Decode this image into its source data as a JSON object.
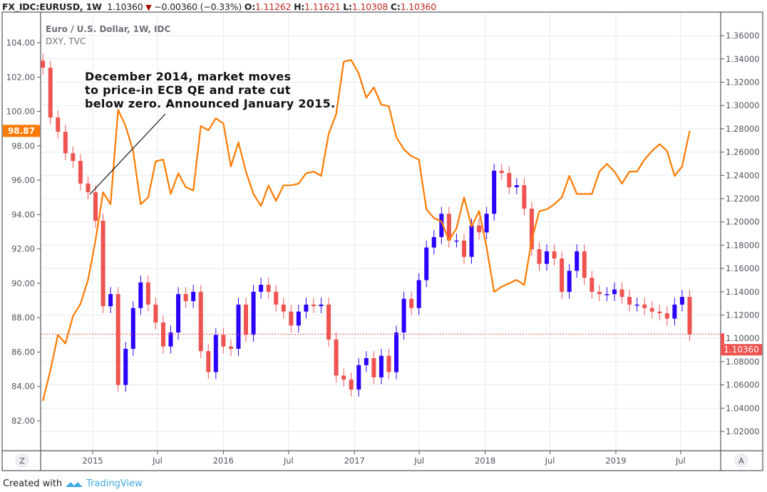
{
  "header": {
    "symbol": "FX_IDC:EURUSD, 1W",
    "last": "1.10360",
    "change": "−0.00360 (−0.33%)",
    "o_label": "O:",
    "o": "1.11262",
    "h_label": "H:",
    "h": "1.11621",
    "l_label": "L:",
    "l": "1.10308",
    "c_label": "C:",
    "c": "1.10360",
    "direction_icon": "triangle-down-icon"
  },
  "legend": {
    "main": "Euro / U.S. Dollar, 1W, IDC",
    "compare": "DXY, TVC"
  },
  "annotation": "December 2014, market moves to price-in ECB QE and rate cut below zero. Announced January 2015.",
  "annotation_lines": [
    "December 2014, market moves",
    "to price-in ECB QE and rate cut",
    "below zero. Announced January 2015."
  ],
  "left_price_label": "98.87",
  "right_price_label": "1.10360",
  "corner_left": "Z",
  "corner_right": "A",
  "footer": {
    "prefix": "Created with",
    "brand": "TradingView"
  },
  "colors": {
    "dxy": "#ff7a00",
    "up": "#2a00ff",
    "down": "#ef5350",
    "grid": "#e1ecf2",
    "last_price": "#ef5350"
  },
  "chart_data": {
    "type": "candlestick+line",
    "title": "FX_IDC:EURUSD, 1W",
    "grid": true,
    "x_ticks": [
      {
        "label": "2015",
        "date": "2015-01-01"
      },
      {
        "label": "Jul",
        "date": "2015-07-01"
      },
      {
        "label": "2016",
        "date": "2016-01-01"
      },
      {
        "label": "Jul",
        "date": "2016-07-01"
      },
      {
        "label": "2017",
        "date": "2017-01-01"
      },
      {
        "label": "Jul",
        "date": "2017-07-01"
      },
      {
        "label": "2018",
        "date": "2018-01-01"
      },
      {
        "label": "Jul",
        "date": "2018-07-01"
      },
      {
        "label": "2019",
        "date": "2019-01-01"
      },
      {
        "label": "Jul",
        "date": "2019-07-01"
      }
    ],
    "left_axis": {
      "series": "DXY",
      "range": [
        81,
        105
      ],
      "ticks": [
        "82.00",
        "84.00",
        "86.00",
        "88.00",
        "90.00",
        "92.00",
        "94.00",
        "96.00",
        "98.00",
        "100.00",
        "102.00",
        "104.00"
      ]
    },
    "right_axis": {
      "series": "EURUSD",
      "range": [
        1.01,
        1.37
      ],
      "ticks": [
        "1.02000",
        "1.04000",
        "1.06000",
        "1.08000",
        "1.10000",
        "1.12000",
        "1.14000",
        "1.16000",
        "1.18000",
        "1.20000",
        "1.22000",
        "1.24000",
        "1.26000",
        "1.28000",
        "1.30000",
        "1.32000",
        "1.34000",
        "1.36000"
      ]
    },
    "dates": [
      "2014-08-15",
      "2014-09-05",
      "2014-09-26",
      "2014-10-17",
      "2014-11-07",
      "2014-11-28",
      "2014-12-19",
      "2015-01-09",
      "2015-01-30",
      "2015-02-20",
      "2015-03-13",
      "2015-04-03",
      "2015-04-24",
      "2015-05-15",
      "2015-06-05",
      "2015-06-26",
      "2015-07-17",
      "2015-08-07",
      "2015-08-28",
      "2015-09-18",
      "2015-10-09",
      "2015-10-30",
      "2015-11-20",
      "2015-12-11",
      "2016-01-01",
      "2016-01-22",
      "2016-02-12",
      "2016-03-04",
      "2016-03-25",
      "2016-04-15",
      "2016-05-06",
      "2016-05-27",
      "2016-06-17",
      "2016-07-08",
      "2016-07-29",
      "2016-08-19",
      "2016-09-09",
      "2016-09-30",
      "2016-10-21",
      "2016-11-11",
      "2016-12-02",
      "2016-12-23",
      "2017-01-13",
      "2017-02-03",
      "2017-02-24",
      "2017-03-17",
      "2017-04-07",
      "2017-04-28",
      "2017-05-19",
      "2017-06-09",
      "2017-06-30",
      "2017-07-21",
      "2017-08-11",
      "2017-09-01",
      "2017-09-22",
      "2017-10-13",
      "2017-11-03",
      "2017-11-24",
      "2017-12-15",
      "2018-01-05",
      "2018-01-26",
      "2018-02-16",
      "2018-03-09",
      "2018-03-30",
      "2018-04-20",
      "2018-05-11",
      "2018-06-01",
      "2018-06-22",
      "2018-07-13",
      "2018-08-03",
      "2018-08-24",
      "2018-09-14",
      "2018-10-05",
      "2018-10-26",
      "2018-11-16",
      "2018-12-07",
      "2018-12-28",
      "2019-01-18",
      "2019-02-08",
      "2019-03-01",
      "2019-03-22",
      "2019-04-12",
      "2019-05-03",
      "2019-05-24",
      "2019-06-14",
      "2019-07-05",
      "2019-07-26"
    ],
    "series": [
      {
        "name": "EURUSD",
        "type": "candlestick",
        "axis": "right",
        "close": [
          1.3325,
          1.2897,
          1.2775,
          1.259,
          1.2524,
          1.233,
          1.2255,
          1.201,
          1.1276,
          1.138,
          1.06,
          1.091,
          1.126,
          1.148,
          1.129,
          1.1136,
          1.093,
          1.105,
          1.138,
          1.132,
          1.14,
          1.089,
          1.071,
          1.103,
          1.093,
          1.091,
          1.129,
          1.103,
          1.14,
          1.146,
          1.14,
          1.129,
          1.123,
          1.111,
          1.123,
          1.129,
          1.1276,
          1.129,
          1.099,
          1.068,
          1.0646,
          1.056,
          1.077,
          1.083,
          1.0665,
          1.085,
          1.071,
          1.105,
          1.134,
          1.126,
          1.15,
          1.178,
          1.187,
          1.207,
          1.184,
          1.184,
          1.17,
          1.197,
          1.191,
          1.207,
          1.244,
          1.242,
          1.2298,
          1.2316,
          1.2114,
          1.1766,
          1.164,
          1.1747,
          1.1686,
          1.14,
          1.158,
          1.1747,
          1.152,
          1.14,
          1.138,
          1.138,
          1.142,
          1.1356,
          1.129,
          1.129,
          1.126,
          1.123,
          1.1215,
          1.117,
          1.129,
          1.1356,
          1.1036
        ]
      },
      {
        "name": "DXY",
        "type": "line",
        "axis": "left",
        "values": [
          83.16,
          84.94,
          87.0,
          86.5,
          88.1,
          88.8,
          90.2,
          92.5,
          95.3,
          94.6,
          100.1,
          99.15,
          97.7,
          94.6,
          95.0,
          97.1,
          97.2,
          95.2,
          96.4,
          95.6,
          95.4,
          99.15,
          98.9,
          99.6,
          99.3,
          96.8,
          98.2,
          96.5,
          95.2,
          94.5,
          95.7,
          94.8,
          95.7,
          95.7,
          95.8,
          96.4,
          96.5,
          96.25,
          98.7,
          99.85,
          102.9,
          103.0,
          102.2,
          100.8,
          101.4,
          100.4,
          100.3,
          98.5,
          97.8,
          97.4,
          97.2,
          94.3,
          93.8,
          93.6,
          92.5,
          93.2,
          95.0,
          93.3,
          94.2,
          92.1,
          89.5,
          89.8,
          90.0,
          90.2,
          89.9,
          92.5,
          94.2,
          94.3,
          94.6,
          95.0,
          96.25,
          95.2,
          95.2,
          95.2,
          96.5,
          96.95,
          96.5,
          95.8,
          96.5,
          96.5,
          97.2,
          97.7,
          98.1,
          97.7,
          96.25,
          96.8,
          98.87
        ]
      }
    ]
  }
}
